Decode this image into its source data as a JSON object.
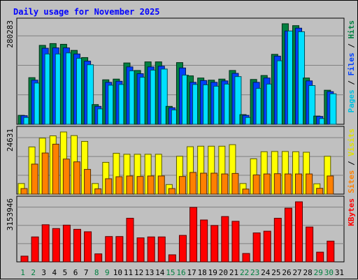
{
  "chart_data": {
    "type": "bar",
    "title": "Daily usage for November 2025",
    "categories": [
      "1",
      "2",
      "3",
      "4",
      "5",
      "6",
      "7",
      "8",
      "9",
      "10",
      "11",
      "12",
      "13",
      "14",
      "15",
      "16",
      "17",
      "18",
      "19",
      "20",
      "21",
      "22",
      "23",
      "24",
      "25",
      "26",
      "27",
      "28",
      "29",
      "30",
      "31"
    ],
    "weekend_days": [
      "1",
      "2",
      "8",
      "9",
      "15",
      "16",
      "22",
      "23",
      "29",
      "30"
    ],
    "colors": {
      "hits": "#008040",
      "files": "#0040ff",
      "pages": "#00e0ff",
      "visits": "#ffff00",
      "sites": "#ff8000",
      "kbytes": "#ff0000",
      "weekday_label": "#000000",
      "weekend_label": "#008040"
    },
    "panels": [
      {
        "id": "hits",
        "ymax_label": "280283",
        "ymax": 280283,
        "side_labels": [
          {
            "text": "Pages",
            "color": "#00c0e0"
          },
          {
            "text": " / ",
            "color": "#000000"
          },
          {
            "text": "Files",
            "color": "#0040ff"
          },
          {
            "text": " / ",
            "color": "#000000"
          },
          {
            "text": "Hits",
            "color": "#008040"
          }
        ],
        "series": [
          {
            "name": "Hits",
            "color": "#008040",
            "values": [
              25000,
              130000,
              220000,
              225000,
              223000,
              206000,
              186000,
              55000,
              124000,
              126000,
              171000,
              150000,
              174000,
              174000,
              50000,
              172000,
              135000,
              129000,
              123000,
              126000,
              150000,
              27000,
              125000,
              136000,
              195000,
              280283,
              275000,
              129000,
              23000,
              95000,
              0
            ]
          },
          {
            "name": "Files",
            "color": "#0040ff",
            "values": [
              24000,
              123000,
              212000,
              213000,
              213000,
              196000,
              176000,
              50000,
              117000,
              120000,
              160000,
              141000,
              160000,
              162000,
              46000,
              157000,
              117000,
              122000,
              117000,
              121000,
              142000,
              25000,
              117000,
              129000,
              190000,
              260000,
              268000,
              121000,
              22000,
              91000,
              0
            ]
          },
          {
            "name": "Pages",
            "color": "#00e0ff",
            "values": [
              19000,
              115000,
              196000,
              196000,
              199000,
              184000,
              166000,
              43000,
              109000,
              111000,
              149000,
              131000,
              151000,
              154000,
              40000,
              137000,
              111000,
              110000,
              106000,
              112000,
              133000,
              19000,
              100000,
              112000,
              177000,
              260000,
              258000,
              108000,
              16000,
              85000,
              0
            ]
          }
        ]
      },
      {
        "id": "visits",
        "ymax_label": "24631",
        "ymax": 24631,
        "side_labels": [
          {
            "text": "Sites",
            "color": "#ff8000"
          },
          {
            "text": " / ",
            "color": "#000000"
          },
          {
            "text": "Visits",
            "color": "#e0e000"
          }
        ],
        "series": [
          {
            "name": "Visits",
            "color": "#ffff00",
            "values": [
              4200,
              18700,
              22200,
              23100,
              24631,
              23200,
              20900,
              4200,
              12600,
              16200,
              15800,
              15800,
              15800,
              15800,
              3800,
              15000,
              18800,
              19000,
              19000,
              19000,
              19600,
              4200,
              14000,
              16800,
              16900,
              16900,
              16800,
              16600,
              4100,
              15000,
              0
            ]
          },
          {
            "name": "Sites",
            "color": "#ff8000",
            "values": [
              2200,
              11900,
              16300,
              19800,
              13900,
              12800,
              9800,
              2100,
              6100,
              6900,
              7200,
              7000,
              7200,
              7200,
              2200,
              7000,
              8600,
              8300,
              8300,
              8000,
              8200,
              2000,
              7600,
              8000,
              8100,
              8000,
              8000,
              8000,
              2300,
              7200,
              0
            ]
          }
        ]
      },
      {
        "id": "kbytes",
        "ymax_label": "3153946",
        "ymax": 3153946,
        "side_labels": [
          {
            "text": "KBytes",
            "color": "#ff0000"
          }
        ],
        "series": [
          {
            "name": "KBytes",
            "color": "#ff0000",
            "values": [
              300000,
              1310000,
              1950000,
              1750000,
              1930000,
              1710000,
              1580000,
              420000,
              1330000,
              1330000,
              2290000,
              1260000,
              1310000,
              1310000,
              370000,
              1390000,
              2860000,
              2200000,
              1910000,
              2380000,
              2130000,
              440000,
              1520000,
              1610000,
              2290000,
              2820000,
              3153946,
              1830000,
              510000,
              1090000,
              0
            ]
          }
        ]
      }
    ]
  }
}
